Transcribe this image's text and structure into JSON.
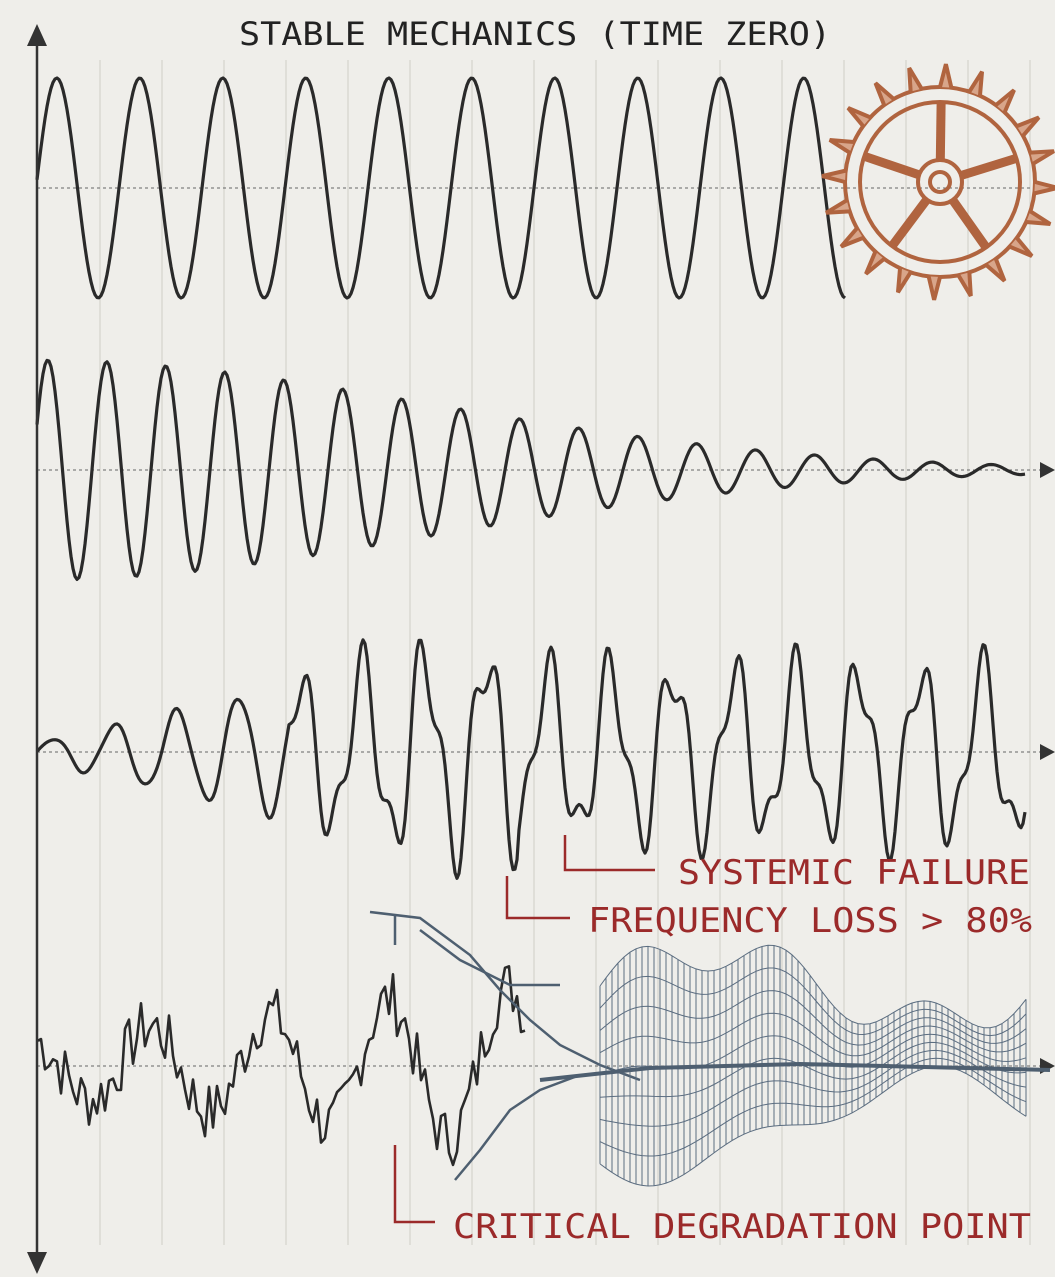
{
  "title": "STABLE MECHANICS (TIME ZERO)",
  "annotations": [
    "SYSTEMIC FAILURE",
    "FREQUENCY LOSS > 80%",
    "CRITICAL DEGRADATION POINT"
  ]
}
